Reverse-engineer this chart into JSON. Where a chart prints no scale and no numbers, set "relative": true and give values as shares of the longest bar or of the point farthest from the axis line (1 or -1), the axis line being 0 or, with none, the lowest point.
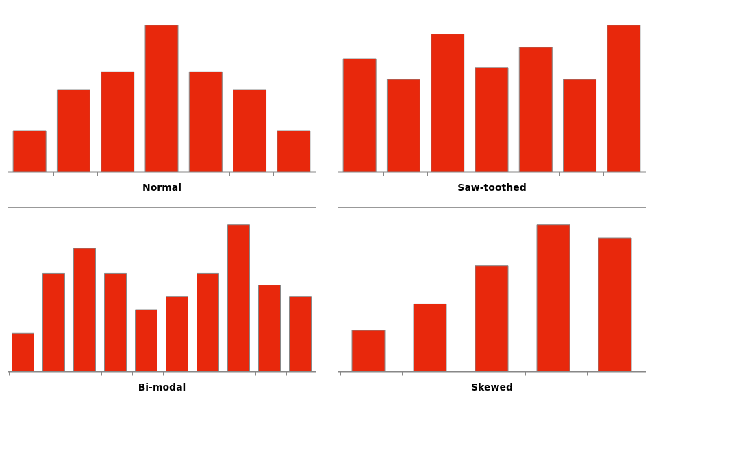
{
  "chart_data": [
    {
      "type": "bar",
      "xlabel": "Normal",
      "categories": [
        null,
        null,
        null,
        null,
        null,
        null,
        null
      ],
      "values": [
        0.28,
        0.56,
        0.68,
        1,
        0.68,
        0.56,
        0.28
      ],
      "color": "#e8280c",
      "relative": true,
      "tick_labels": false,
      "grid": false
    },
    {
      "type": "bar",
      "xlabel": "Saw-toothed",
      "categories": [
        null,
        null,
        null,
        null,
        null,
        null,
        null
      ],
      "values": [
        0.77,
        0.63,
        0.94,
        0.71,
        0.85,
        0.63,
        1
      ],
      "color": "#e8280c",
      "relative": true,
      "tick_labels": false,
      "grid": false
    },
    {
      "type": "bar",
      "xlabel": "Bi-modal",
      "categories": [
        null,
        null,
        null,
        null,
        null,
        null,
        null,
        null,
        null,
        null
      ],
      "values": [
        0.26,
        0.67,
        0.84,
        0.67,
        0.42,
        0.51,
        0.67,
        1,
        0.59,
        0.51
      ],
      "color": "#e8280c",
      "relative": true,
      "tick_labels": false,
      "grid": false
    },
    {
      "type": "bar",
      "xlabel": "Skewed",
      "categories": [
        null,
        null,
        null,
        null,
        null
      ],
      "values": [
        0.28,
        0.46,
        0.72,
        1,
        0.91
      ],
      "color": "#e8280c",
      "relative": true,
      "tick_labels": false,
      "grid": false
    }
  ]
}
